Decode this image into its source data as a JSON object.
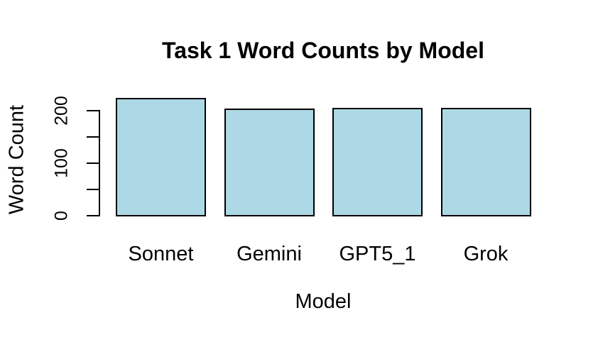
{
  "chart_data": {
    "type": "bar",
    "title": "Task 1 Word Counts by Model",
    "xlabel": "Model",
    "ylabel": "Word Count",
    "categories": [
      "Sonnet",
      "Gemini",
      "GPT5_1",
      "Grok"
    ],
    "values": [
      222,
      202,
      204,
      203
    ],
    "ylim": [
      0,
      225
    ],
    "y_ticks": [
      0,
      50,
      100,
      150,
      200
    ],
    "y_labeled_ticks": [
      0,
      100,
      200
    ],
    "grid": false,
    "legend": "none",
    "bar_fill": "#ADD8E6",
    "bar_border": "#000000",
    "axis_color": "#000000",
    "text_color": "#000000",
    "background": "#FFFFFF"
  }
}
